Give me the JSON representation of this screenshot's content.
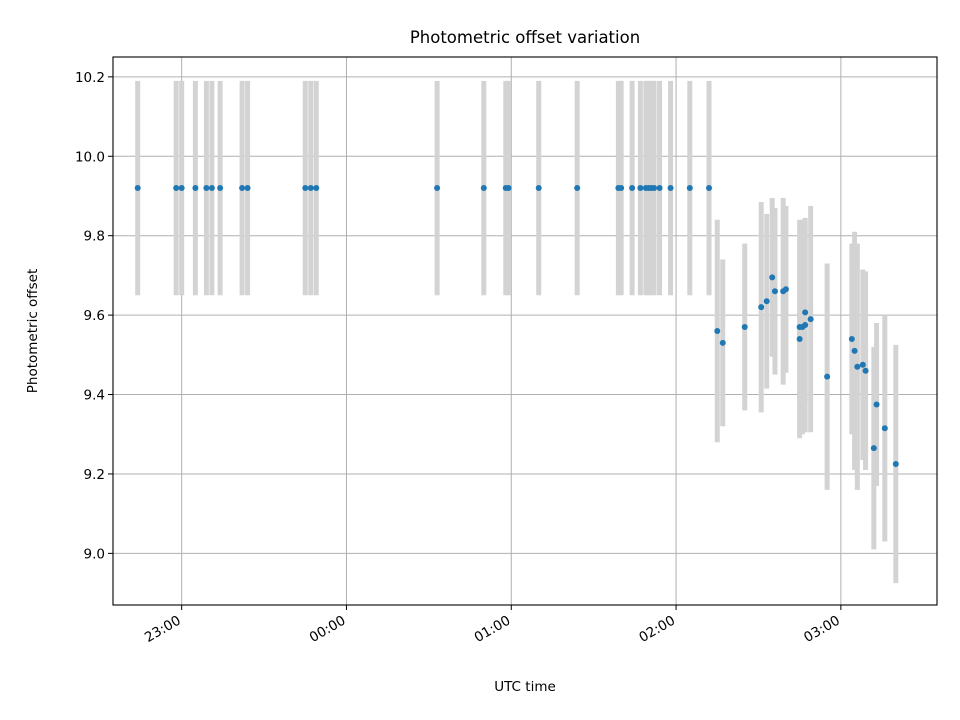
{
  "chart_data": {
    "type": "scatter",
    "title": "Photometric offset variation",
    "xlabel": "UTC time",
    "ylabel": "Photometric offset",
    "grid": true,
    "x_tick_labels": [
      "23:00",
      "00:00",
      "01:00",
      "02:00",
      "03:00"
    ],
    "y_tick_labels": [
      "9.0",
      "9.2",
      "9.4",
      "9.6",
      "9.8",
      "10.0",
      "10.2"
    ],
    "y_ticks": [
      9.0,
      9.2,
      9.4,
      9.6,
      9.8,
      10.0,
      10.2
    ],
    "xlim": [
      "22:35",
      "03:35"
    ],
    "ylim": [
      8.87,
      10.25
    ],
    "colors": {
      "points": "#1f77b4",
      "errorbars": "#d3d3d3",
      "grid": "#b0b0b0"
    },
    "series": [
      {
        "x": [
          "22:44",
          "22:58",
          "23:00",
          "23:05",
          "23:09",
          "23:11",
          "23:14",
          "23:22",
          "23:24",
          "23:45",
          "23:47",
          "23:49",
          "00:33",
          "00:50",
          "00:58",
          "00:59",
          "01:10",
          "01:24",
          "01:39",
          "01:40",
          "01:44",
          "01:47",
          "01:49",
          "01:50",
          "01:51",
          "01:52",
          "01:54",
          "01:58",
          "02:05",
          "02:12",
          "02:15",
          "02:17",
          "02:25",
          "02:31",
          "02:33",
          "02:35",
          "02:36",
          "02:39",
          "02:40",
          "02:45",
          "02:45",
          "02:46",
          "02:47",
          "02:47",
          "02:49",
          "02:55",
          "03:04",
          "03:05",
          "03:06",
          "03:08",
          "03:09",
          "03:12",
          "03:13",
          "03:16",
          "03:20"
        ],
        "y": [
          9.92,
          9.92,
          9.92,
          9.92,
          9.92,
          9.92,
          9.92,
          9.92,
          9.92,
          9.92,
          9.92,
          9.92,
          9.92,
          9.92,
          9.92,
          9.92,
          9.92,
          9.92,
          9.92,
          9.92,
          9.92,
          9.92,
          9.92,
          9.92,
          9.92,
          9.92,
          9.92,
          9.92,
          9.92,
          9.92,
          9.56,
          9.53,
          9.57,
          9.62,
          9.635,
          9.695,
          9.66,
          9.66,
          9.665,
          9.57,
          9.54,
          9.57,
          9.607,
          9.575,
          9.59,
          9.445,
          9.54,
          9.51,
          9.47,
          9.475,
          9.46,
          9.265,
          9.375,
          9.315,
          9.225
        ],
        "yerr": [
          0.27,
          0.27,
          0.27,
          0.27,
          0.27,
          0.27,
          0.27,
          0.27,
          0.27,
          0.27,
          0.27,
          0.27,
          0.27,
          0.27,
          0.27,
          0.27,
          0.27,
          0.27,
          0.27,
          0.27,
          0.27,
          0.27,
          0.27,
          0.27,
          0.27,
          0.27,
          0.27,
          0.27,
          0.27,
          0.27,
          0.28,
          0.21,
          0.21,
          0.265,
          0.22,
          0.2,
          0.21,
          0.235,
          0.21,
          0.27,
          0.25,
          0.27,
          0.23,
          0.27,
          0.285,
          0.285,
          0.24,
          0.3,
          0.31,
          0.24,
          0.25,
          0.255,
          0.205,
          0.285,
          0.3
        ]
      }
    ]
  }
}
